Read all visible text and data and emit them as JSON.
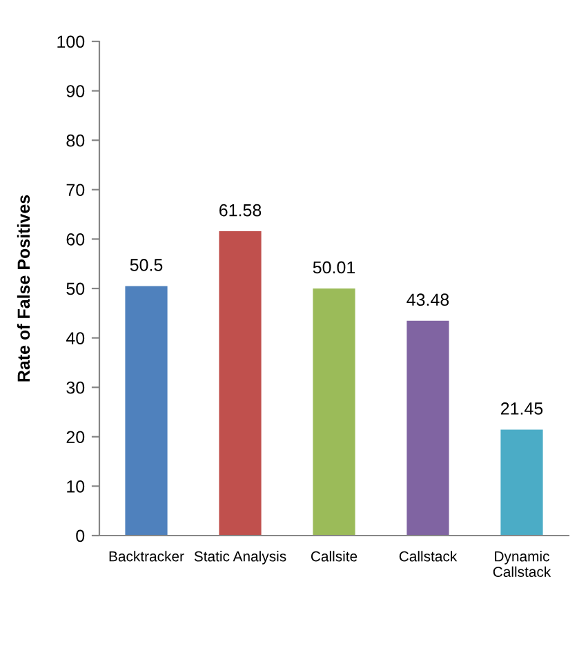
{
  "chart_data": {
    "type": "bar",
    "ylabel": "Rate of False Positives",
    "categories": [
      "Backtracker",
      "Static Analysis",
      "Callsite",
      "Callstack",
      "Dynamic\nCallstack"
    ],
    "values": [
      50.5,
      61.58,
      50.01,
      43.48,
      21.45
    ],
    "colors": [
      "#4f81bd",
      "#c0504d",
      "#9bbb59",
      "#8064a2",
      "#4bacc6"
    ],
    "ylim": [
      0,
      100
    ],
    "yticks": [
      0,
      10,
      20,
      30,
      40,
      50,
      60,
      70,
      80,
      90,
      100
    ],
    "grid": false,
    "data_labels": true
  }
}
